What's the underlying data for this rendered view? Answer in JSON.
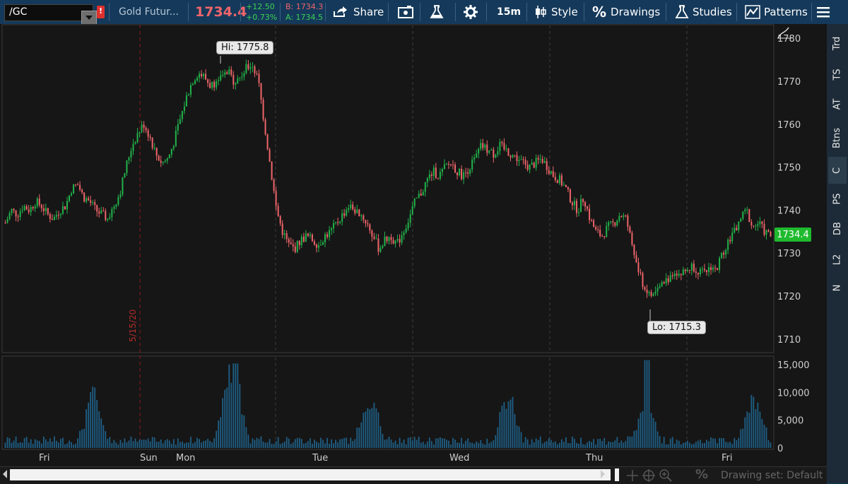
{
  "toolbar": {
    "symbol": "/GC",
    "flag_letter": "!",
    "instrument_name": "Gold Futur...",
    "last_price": "1734.4",
    "net_change": "+12.50",
    "pct_change": "+0.73%",
    "bid": "B: 1734.3",
    "ask": "A: 1734.5",
    "share_label": "Share",
    "timeframe_label": "15m",
    "style_label": "Style",
    "drawings_label": "Drawings",
    "studies_label": "Studies",
    "patterns_label": "Patterns"
  },
  "sidebar": {
    "tabs": [
      "Trd",
      "TS",
      "AT",
      "Btns",
      "C",
      "PS",
      "DB",
      "L2",
      "N"
    ]
  },
  "chart": {
    "hi_label": "Hi: 1775.8",
    "lo_label": "Lo: 1715.3",
    "current_price_tag": "1734.4",
    "date_marker": "5/15/20",
    "price_axis": [
      "1780",
      "1770",
      "1760",
      "1750",
      "1740",
      "1730",
      "1720",
      "1710"
    ],
    "volume_axis": [
      "15,000",
      "10,000",
      "5,000",
      "0"
    ],
    "time_axis": [
      "Fri",
      "Sun",
      "Mon",
      "Tue",
      "Wed",
      "Thu",
      "Fri"
    ]
  },
  "footer": {
    "drawing_set": "Drawing set: Default"
  },
  "colors": {
    "toolbar_bg": "#15395a",
    "chart_bg": "#161616",
    "up_candle": "#21b34a",
    "down_candle": "#f0656a",
    "volume_bar": "#1f5f86",
    "last_price_red": "#f0656a",
    "tag_green": "#1fba2e"
  },
  "chart_data": {
    "type": "candlestick",
    "title": "",
    "series": [
      {
        "name": "",
        "ohlc_close": [
          1737,
          1740,
          1739,
          1741,
          1740,
          1742,
          1741,
          1739,
          1738,
          1740,
          1741,
          1745,
          1746,
          1743,
          1742,
          1740,
          1739,
          1738,
          1741,
          1744,
          1750,
          1755,
          1758,
          1760,
          1757,
          1753,
          1751,
          1752,
          1756,
          1761,
          1766,
          1770,
          1772,
          1771,
          1769,
          1770,
          1771,
          1772,
          1770,
          1771,
          1773,
          1774,
          1770,
          1760,
          1750,
          1740,
          1735,
          1732,
          1731,
          1733,
          1734,
          1733,
          1732,
          1734,
          1735,
          1737,
          1739,
          1741,
          1740,
          1739,
          1737,
          1734,
          1731,
          1733,
          1734,
          1732,
          1735,
          1738,
          1742,
          1744,
          1747,
          1749,
          1748,
          1750,
          1751,
          1749,
          1748,
          1750,
          1752,
          1755,
          1754,
          1753,
          1755,
          1754,
          1753,
          1752,
          1751,
          1750,
          1751,
          1752,
          1750,
          1748,
          1747,
          1745,
          1742,
          1740,
          1743,
          1738,
          1735,
          1734,
          1736,
          1737,
          1739,
          1738,
          1732,
          1726,
          1722,
          1720,
          1721,
          1723,
          1724,
          1726,
          1725,
          1726,
          1727,
          1726,
          1725,
          1727,
          1726,
          1730,
          1733,
          1735,
          1738,
          1740,
          1736,
          1737,
          1735,
          1734
        ]
      }
    ],
    "ylim": [
      1707,
      1783
    ],
    "hi": 1775.8,
    "lo": 1715.3,
    "last": 1734.4,
    "volume_ylim": [
      0,
      16000
    ]
  }
}
